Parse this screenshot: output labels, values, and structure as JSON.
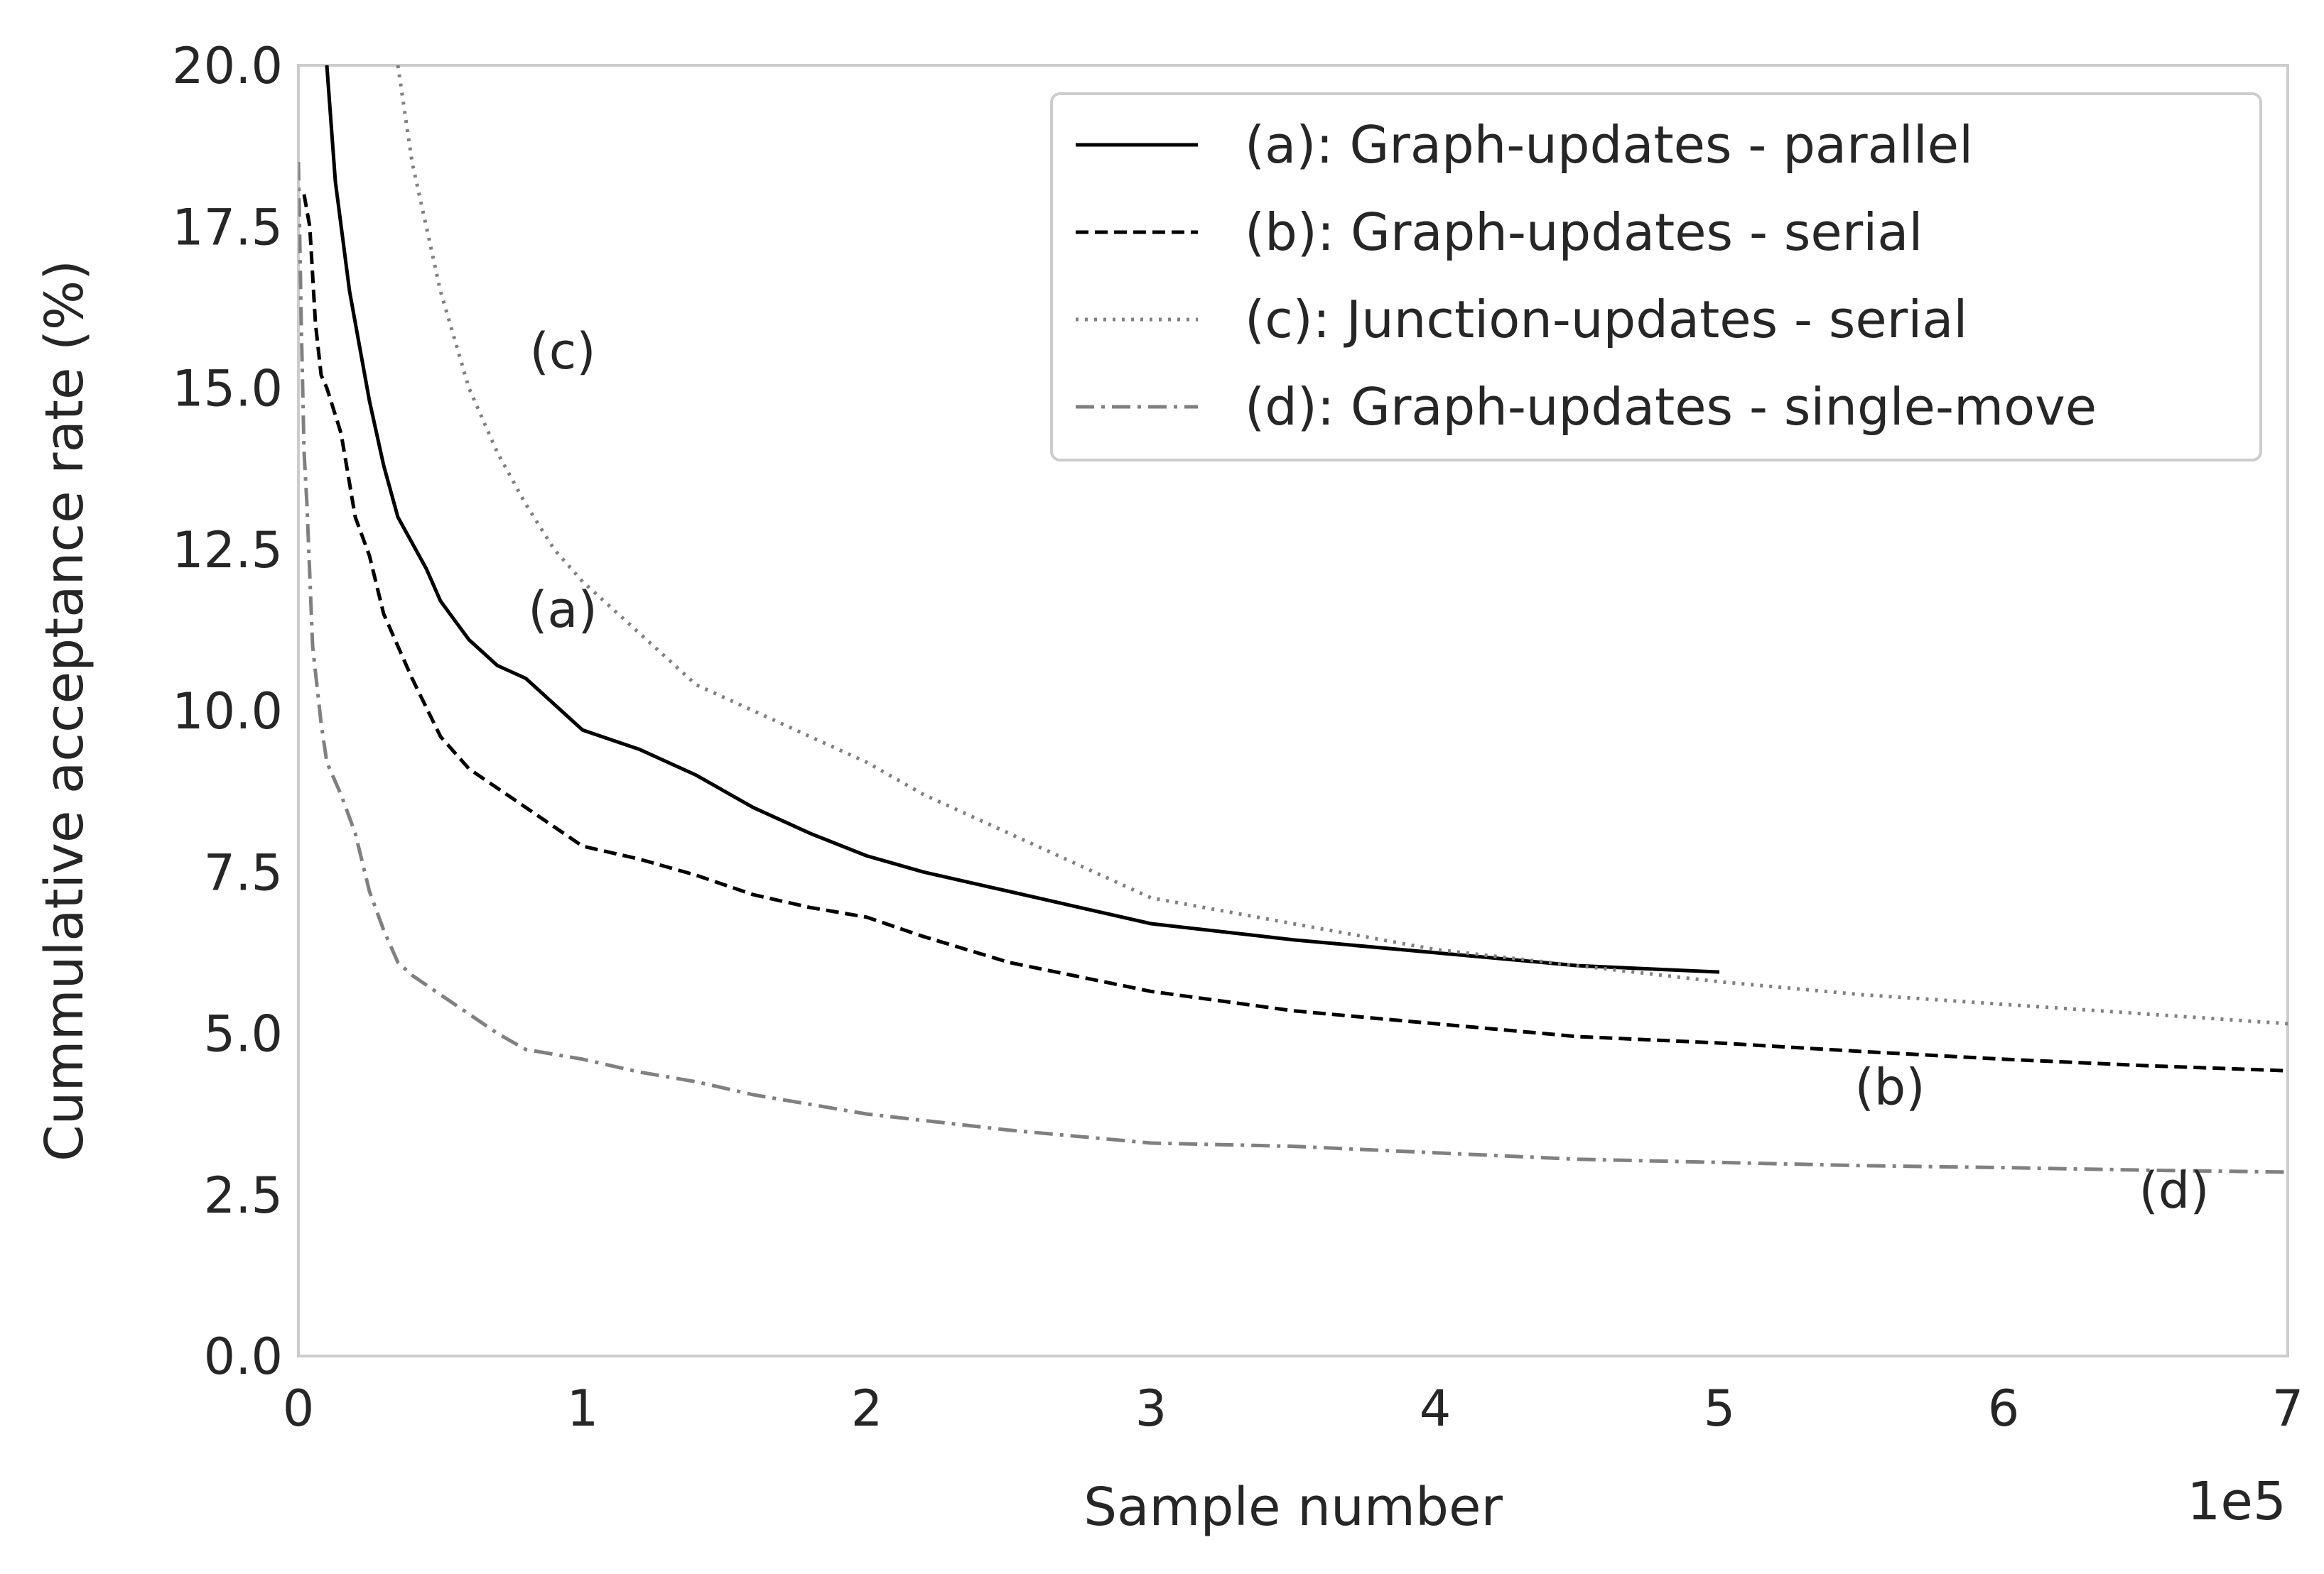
{
  "chart_data": {
    "type": "line",
    "title": "",
    "xlabel": "Sample number",
    "ylabel": "Cummulative acceptance rate (%)",
    "x_offset_label": "1e5",
    "xlim": [
      0,
      7
    ],
    "ylim": [
      0,
      20
    ],
    "grid": false,
    "legend_position": "top-right",
    "x_ticks": [
      "0",
      "1",
      "2",
      "3",
      "4",
      "5",
      "6",
      "7"
    ],
    "y_ticks": [
      "0.0",
      "2.5",
      "5.0",
      "7.5",
      "10.0",
      "12.5",
      "15.0",
      "17.5",
      "20.0"
    ],
    "series": [
      {
        "name": "(a): Graph-updates - parallel",
        "color": "#000000",
        "dash": "solid",
        "x": [
          0.1,
          0.13,
          0.18,
          0.25,
          0.3,
          0.35,
          0.4,
          0.45,
          0.5,
          0.6,
          0.7,
          0.8,
          1.0,
          1.2,
          1.4,
          1.6,
          1.8,
          2.0,
          2.2,
          2.5,
          3.0,
          3.5,
          4.0,
          4.5,
          5.0
        ],
        "y": [
          20.0,
          18.2,
          16.5,
          14.8,
          13.8,
          13.0,
          12.6,
          12.2,
          11.7,
          11.1,
          10.7,
          10.5,
          9.7,
          9.4,
          9.0,
          8.5,
          8.1,
          7.75,
          7.5,
          7.2,
          6.7,
          6.45,
          6.25,
          6.05,
          5.95
        ]
      },
      {
        "name": "(b): Graph-updates - serial",
        "color": "#000000",
        "dash": "dashed",
        "x": [
          0.02,
          0.04,
          0.06,
          0.08,
          0.1,
          0.15,
          0.2,
          0.25,
          0.3,
          0.35,
          0.4,
          0.5,
          0.6,
          0.7,
          0.8,
          1.0,
          1.2,
          1.4,
          1.6,
          1.8,
          2.0,
          2.2,
          2.5,
          3.0,
          3.5,
          4.0,
          4.5,
          5.0,
          5.5,
          6.0,
          6.5,
          7.0
        ],
        "y": [
          18.0,
          17.5,
          16.0,
          15.2,
          15.0,
          14.3,
          13.0,
          12.4,
          11.5,
          11.0,
          10.5,
          9.6,
          9.1,
          8.8,
          8.5,
          7.9,
          7.7,
          7.45,
          7.15,
          6.95,
          6.8,
          6.5,
          6.1,
          5.65,
          5.35,
          5.15,
          4.95,
          4.85,
          4.72,
          4.6,
          4.5,
          4.42
        ]
      },
      {
        "name": "(c): Junction-updates - serial",
        "color": "#808080",
        "dash": "dotted",
        "x": [
          0.35,
          0.4,
          0.5,
          0.6,
          0.7,
          0.8,
          0.9,
          1.0,
          1.2,
          1.4,
          1.6,
          1.8,
          2.0,
          2.2,
          2.5,
          3.0,
          3.5,
          4.0,
          4.5,
          5.0,
          5.5,
          6.0,
          6.5,
          7.0
        ],
        "y": [
          20.0,
          18.5,
          16.5,
          15.0,
          14.0,
          13.2,
          12.5,
          12.0,
          11.2,
          10.4,
          10.0,
          9.6,
          9.2,
          8.7,
          8.1,
          7.1,
          6.7,
          6.3,
          6.05,
          5.8,
          5.6,
          5.45,
          5.3,
          5.15
        ]
      },
      {
        "name": "(d): Graph-updates - single-move",
        "color": "#808080",
        "dash": "dashdot",
        "x": [
          0.0,
          0.01,
          0.02,
          0.03,
          0.05,
          0.08,
          0.1,
          0.15,
          0.2,
          0.25,
          0.3,
          0.35,
          0.4,
          0.5,
          0.6,
          0.7,
          0.8,
          1.0,
          1.2,
          1.4,
          1.6,
          1.8,
          2.0,
          2.5,
          3.0,
          3.5,
          4.0,
          4.5,
          5.0,
          5.5,
          6.0,
          6.5,
          7.0
        ],
        "y": [
          18.5,
          16.0,
          14.0,
          13.2,
          11.0,
          9.8,
          9.2,
          8.7,
          8.1,
          7.2,
          6.6,
          6.1,
          5.9,
          5.6,
          5.3,
          5.0,
          4.75,
          4.6,
          4.4,
          4.25,
          4.05,
          3.9,
          3.75,
          3.5,
          3.3,
          3.25,
          3.15,
          3.05,
          3.0,
          2.95,
          2.92,
          2.88,
          2.85
        ]
      }
    ],
    "annotations": [
      {
        "text": "(c)",
        "x": 0.93,
        "y": 15.3
      },
      {
        "text": "(a)",
        "x": 0.93,
        "y": 11.3
      },
      {
        "text": "(b)",
        "x": 5.6,
        "y": 3.9
      },
      {
        "text": "(d)",
        "x": 6.6,
        "y": 2.3
      }
    ]
  }
}
